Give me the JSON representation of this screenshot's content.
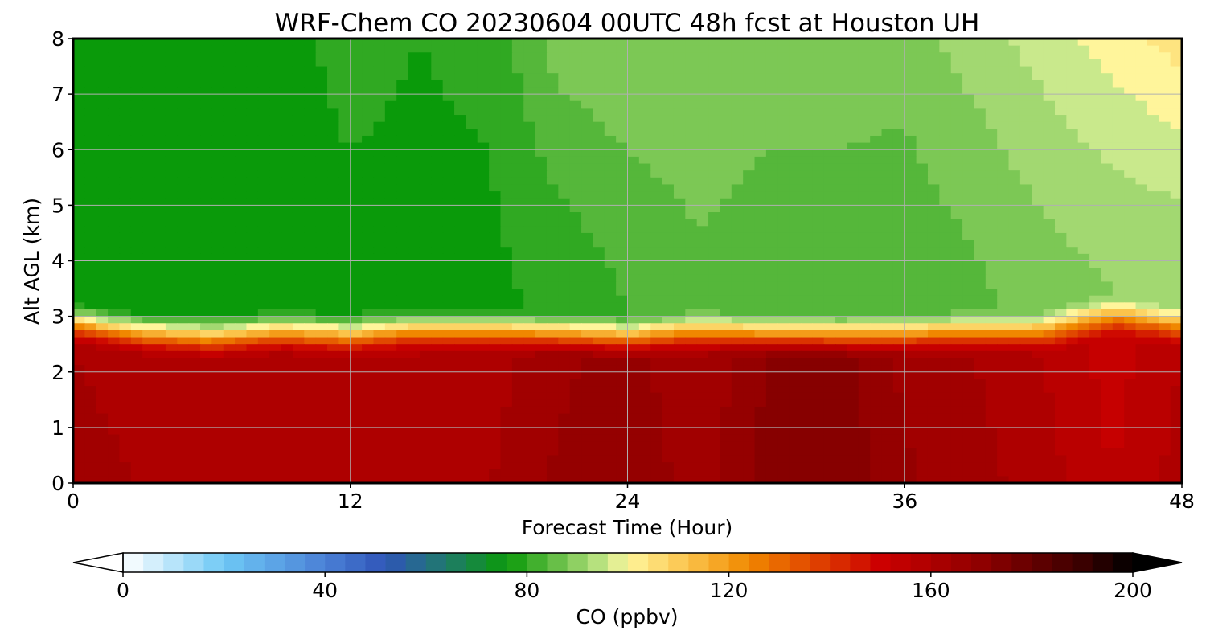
{
  "chart_data": {
    "type": "heatmap",
    "title": "WRF-Chem CO  20230604 00UTC 48h fcst at Houston UH",
    "xlabel": "Forecast Time (Hour)",
    "ylabel": "Alt AGL (km)",
    "xlim": [
      0,
      48
    ],
    "ylim": [
      0,
      8
    ],
    "xticks": [
      "0",
      "12",
      "24",
      "36",
      "48"
    ],
    "yticks": [
      "0",
      "1",
      "2",
      "3",
      "4",
      "5",
      "6",
      "7",
      "8"
    ],
    "grid": true,
    "colorbar": {
      "label": "CO  (ppbv)",
      "ticks": [
        "0",
        "40",
        "80",
        "120",
        "160",
        "200"
      ],
      "range": [
        0,
        200
      ],
      "step": 4,
      "extend": "both",
      "stops": [
        {
          "v": 0,
          "c": "#ffffff"
        },
        {
          "v": 20,
          "c": "#6ec8f5"
        },
        {
          "v": 40,
          "c": "#4a80d6"
        },
        {
          "v": 52,
          "c": "#2f55b8"
        },
        {
          "v": 64,
          "c": "#1f7a6b"
        },
        {
          "v": 76,
          "c": "#0a9a0a"
        },
        {
          "v": 84,
          "c": "#55b73a"
        },
        {
          "v": 96,
          "c": "#c9e98c"
        },
        {
          "v": 100,
          "c": "#fff59b"
        },
        {
          "v": 112,
          "c": "#fbc34a"
        },
        {
          "v": 124,
          "c": "#f08800"
        },
        {
          "v": 136,
          "c": "#e14800"
        },
        {
          "v": 150,
          "c": "#cc0000"
        },
        {
          "v": 170,
          "c": "#8f0000"
        },
        {
          "v": 190,
          "c": "#3a0000"
        },
        {
          "v": 200,
          "c": "#000000"
        }
      ]
    },
    "x": [
      0,
      3,
      6,
      9,
      12,
      15,
      18,
      21,
      24,
      27,
      30,
      33,
      36,
      39,
      42,
      45,
      48
    ],
    "boundary_layer_top_km": [
      2.95,
      2.78,
      2.72,
      2.8,
      2.75,
      2.85,
      2.83,
      2.78,
      2.7,
      2.8,
      2.75,
      2.73,
      2.76,
      2.8,
      2.8,
      3.1,
      2.9
    ],
    "surface_co_ppbv": [
      162,
      160,
      158,
      160,
      158,
      158,
      160,
      165,
      168,
      162,
      170,
      172,
      165,
      162,
      158,
      152,
      158
    ],
    "mid_co_ppbv": [
      76,
      76,
      77,
      77,
      77,
      77,
      77,
      79,
      82,
      85,
      84,
      84,
      83,
      85,
      88,
      90,
      90
    ],
    "upper_co_ppbv": [
      78,
      78,
      77,
      77,
      79,
      78,
      79,
      88,
      90,
      90,
      88,
      88,
      88,
      92,
      96,
      100,
      104
    ]
  }
}
